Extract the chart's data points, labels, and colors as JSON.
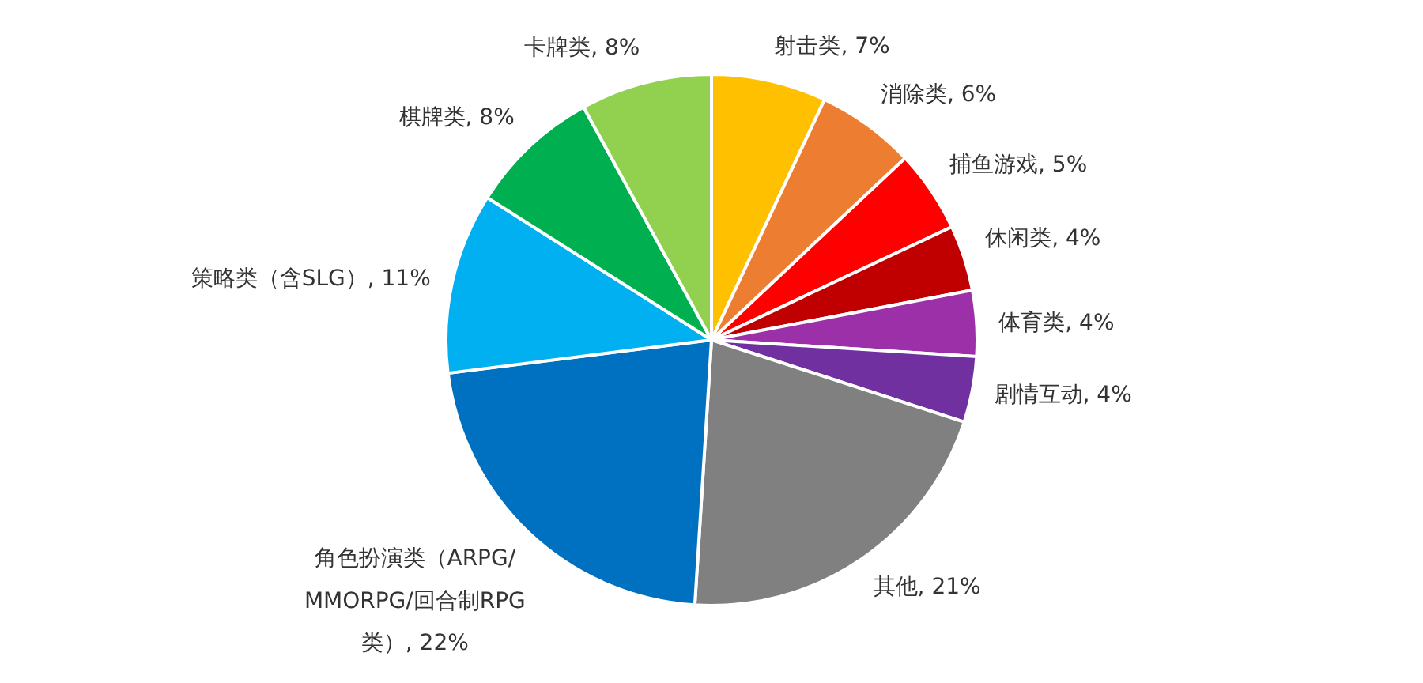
{
  "chart_data": {
    "type": "pie",
    "categories": [
      "射击类",
      "消除类",
      "捕鱼游戏",
      "休闲类",
      "体育类",
      "剧情互动",
      "其他",
      "角色扮演类（ARPG/MMORPG/回合制RPG类）",
      "策略类（含SLG）",
      "棋牌类",
      "卡牌类"
    ],
    "values": [
      7,
      6,
      5,
      4,
      4,
      4,
      21,
      22,
      11,
      8,
      8
    ],
    "value_labels": [
      "7%",
      "6%",
      "5%",
      "4%",
      "4%",
      "4%",
      "21%",
      "22%",
      "11%",
      "8%",
      "8%"
    ],
    "colors": [
      "#ffc000",
      "#ed7d31",
      "#ff0000",
      "#c00000",
      "#9b30a8",
      "#7030a0",
      "#808080",
      "#0070c0",
      "#00b0f0",
      "#00b050",
      "#92d050"
    ]
  }
}
